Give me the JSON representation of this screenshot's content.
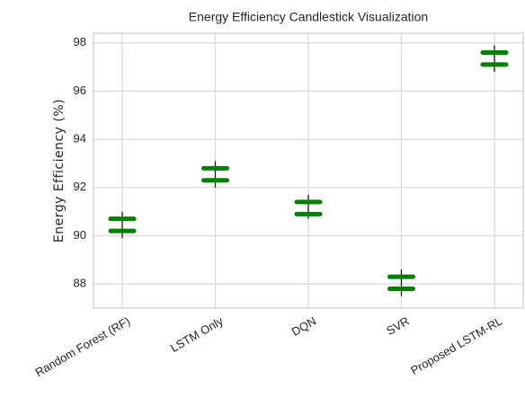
{
  "chart_data": {
    "type": "candlestick",
    "title": "Energy Efficiency Candlestick Visualization",
    "y_label": "Energy Efficiency (%)",
    "categories": [
      "Random Forest (RF)",
      "LSTM Only",
      "DQN",
      "SVR",
      "Proposed LSTM-RL"
    ],
    "open": [
      90.2,
      92.3,
      90.9,
      87.8,
      97.1
    ],
    "high": [
      91.0,
      93.1,
      91.7,
      88.6,
      97.9
    ],
    "low": [
      89.9,
      92.0,
      90.7,
      87.5,
      96.8
    ],
    "close": [
      90.7,
      92.8,
      91.4,
      88.3,
      97.6
    ],
    "color": "#007f00",
    "ylim": [
      87.0,
      98.4
    ],
    "yticks": [
      88,
      90,
      92,
      94,
      96,
      98
    ],
    "grid": true
  }
}
